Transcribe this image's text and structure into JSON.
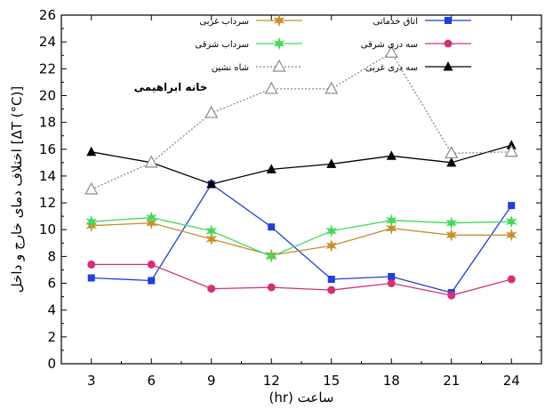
{
  "chart_data": {
    "type": "line",
    "xlabel": "(hr) ساعت",
    "ylabel": "اختلاف دمای خارج و داخل [ΔT (°C)]",
    "annotation": "خانه ابراهیمی",
    "x": [
      3,
      6,
      9,
      12,
      15,
      18,
      21,
      24
    ],
    "xticks": [
      "3",
      "6",
      "9",
      "12",
      "15",
      "18",
      "21",
      "24"
    ],
    "xlim": [
      1.5,
      25.5
    ],
    "ylim": [
      0,
      26
    ],
    "yticks": [
      "0",
      "2",
      "4",
      "6",
      "8",
      "10",
      "12",
      "14",
      "16",
      "18",
      "20",
      "22",
      "24",
      "26"
    ],
    "grid": false,
    "legend_position": "top",
    "series": [
      {
        "name": "اتاق خدماتی",
        "color": "#1f3fd6",
        "marker": "square",
        "dash": "solid",
        "values": [
          6.4,
          6.2,
          13.4,
          10.2,
          6.3,
          6.5,
          5.3,
          11.8
        ]
      },
      {
        "name": "سرداب غربی",
        "color": "#c8902e",
        "marker": "star",
        "dash": "solid",
        "values": [
          10.3,
          10.5,
          9.3,
          8.1,
          8.8,
          10.1,
          9.6,
          9.6
        ]
      },
      {
        "name": "سه دری شرقی",
        "color": "#d4307a",
        "marker": "circle",
        "dash": "solid",
        "values": [
          7.4,
          7.4,
          5.6,
          5.7,
          5.5,
          6.0,
          5.1,
          6.3
        ]
      },
      {
        "name": "سرداب شرقی",
        "color": "#44d95a",
        "marker": "star",
        "dash": "solid",
        "values": [
          10.6,
          10.9,
          9.9,
          8.0,
          9.9,
          10.7,
          10.5,
          10.6
        ]
      },
      {
        "name": "سه دری غربی",
        "color": "#000000",
        "marker": "triangle-filled",
        "dash": "solid",
        "values": [
          15.8,
          15.0,
          13.4,
          14.5,
          14.9,
          15.5,
          15.0,
          16.3
        ]
      },
      {
        "name": "شاه نشین",
        "color": "#8a8a8a",
        "marker": "triangle-open",
        "dash": "dotted",
        "values": [
          13.0,
          15.0,
          18.7,
          20.5,
          20.5,
          23.2,
          15.7,
          15.8
        ]
      }
    ]
  }
}
